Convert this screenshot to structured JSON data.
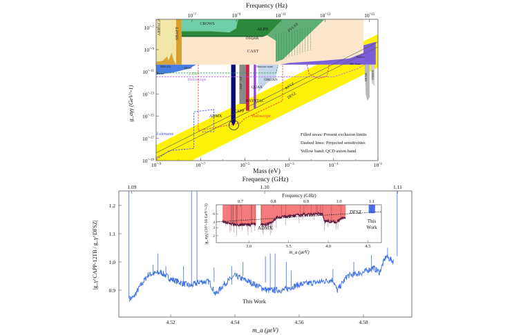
{
  "chart_data": [
    {
      "type": "area",
      "title": "Axion-photon coupling exclusion plot",
      "xlabel": "Mass (eV)",
      "ylabel": "g_aγγ (GeV^-1)",
      "top_xlabel": "Frequency (Hz)",
      "xscale": "log",
      "yscale": "log",
      "xlim_log10": [
        -9,
        1
      ],
      "ylim_log10": [
        -19,
        -6.25
      ],
      "x_ticks": [
        "10^-9",
        "10^-7",
        "10^-5",
        "10^-3",
        "10^-1",
        "10^1"
      ],
      "x_ticks_log10": [
        -9,
        -7,
        -5,
        -3,
        -1,
        1
      ],
      "y_ticks": [
        "10^-19",
        "10^-17",
        "10^-15",
        "10^-13",
        "10^-11",
        "10^-9",
        "10^-7"
      ],
      "y_ticks_log10": [
        -19,
        -17,
        -15,
        -13,
        -11,
        -9,
        -7
      ],
      "top_ticks": [
        "10^7",
        "10^9",
        "10^11",
        "10^13",
        "10^15"
      ],
      "top_ticks_log10_hz": [
        7,
        9,
        11,
        13,
        15
      ],
      "regions": [
        {
          "name": "CAST",
          "color": "#fbe6cc",
          "poly": [
            [
              -7.85,
              -6.25
            ],
            [
              0.35,
              -6.25
            ],
            [
              0.35,
              -10.35
            ],
            [
              -7.85,
              -10.35
            ]
          ]
        },
        {
          "name": "ABRACADABRA",
          "color": "#f1e7a8",
          "poly": [
            [
              -9,
              -6.25
            ],
            [
              -8.1,
              -6.25
            ],
            [
              -8.1,
              -10.35
            ],
            [
              -9,
              -10.35
            ]
          ]
        },
        {
          "name": "ABRACADABRA-limit",
          "color": "#d9a536",
          "poly": [
            [
              -9,
              -10.35
            ],
            [
              -9,
              -10.1
            ],
            [
              -8.7,
              -10.0
            ],
            [
              -8.5,
              -9.6
            ],
            [
              -8.45,
              -10.0
            ],
            [
              -8.3,
              -9.3
            ],
            [
              -8.2,
              -10.0
            ],
            [
              -8.1,
              -10.35
            ]
          ]
        },
        {
          "name": "SHAFT",
          "color": "#d9a02c",
          "poly": [
            [
              -8.1,
              -6.25
            ],
            [
              -7.85,
              -6.25
            ],
            [
              -7.85,
              -10.35
            ],
            [
              -8.1,
              -10.35
            ]
          ]
        },
        {
          "name": "CROWS",
          "color": "#6fcfa9",
          "poly": [
            [
              -7.85,
              -6.25
            ],
            [
              -5.3,
              -6.25
            ],
            [
              -5.4,
              -7.1
            ],
            [
              -5.7,
              -7.45
            ],
            [
              -6.5,
              -7.35
            ],
            [
              -7.85,
              -7.35
            ]
          ]
        },
        {
          "name": "ALPS",
          "color": "#2a8a3a",
          "poly": [
            [
              -7.85,
              -7.35
            ],
            [
              -6.5,
              -7.35
            ],
            [
              -5.7,
              -7.45
            ],
            [
              -5.4,
              -7.1
            ],
            [
              -5.3,
              -6.25
            ],
            [
              -3.3,
              -6.25
            ],
            [
              -3.6,
              -6.9
            ],
            [
              -4.0,
              -7.7
            ],
            [
              -7.85,
              -7.7
            ]
          ]
        },
        {
          "name": "OSQAR",
          "color": "#1f6e30",
          "poly": [
            [
              -7.85,
              -7.7
            ],
            [
              -4.0,
              -7.7
            ],
            [
              -4.2,
              -7.85
            ],
            [
              -7.85,
              -7.85
            ]
          ]
        },
        {
          "name": "PVLAS",
          "color": "#5fae77",
          "poly": [
            [
              -3.3,
              -6.25
            ],
            [
              -1.4,
              -6.25
            ],
            [
              -3.3,
              -9.9
            ],
            [
              -3.6,
              -10.1
            ],
            [
              -3.6,
              -8.2
            ],
            [
              -4.0,
              -7.7
            ],
            [
              -3.6,
              -6.9
            ]
          ]
        },
        {
          "name": "Fermi-HESS-Mrk421",
          "color": "#4a7de0",
          "poly": [
            [
              -9,
              -10.35
            ],
            [
              -7.2,
              -10.35
            ],
            [
              -7.5,
              -10.7
            ],
            [
              -8.3,
              -11.1
            ],
            [
              -9,
              -11.25
            ]
          ]
        },
        {
          "name": "Stars",
          "color": "#7a5fd8",
          "poly": [
            [
              -3.4,
              -10.35
            ],
            [
              0.9,
              -10.35
            ],
            [
              0.9,
              -8.3
            ],
            [
              0.35,
              -8.6
            ],
            [
              0.35,
              -9.3
            ],
            [
              -0.3,
              -9.8
            ],
            [
              -1.5,
              -10.0
            ],
            [
              -3.0,
              -10.2
            ]
          ]
        },
        {
          "name": "MUSE",
          "color": "#b8b8b8",
          "poly": [
            [
              0.4,
              -10.35
            ],
            [
              0.62,
              -10.35
            ],
            [
              0.62,
              -13.3
            ],
            [
              0.52,
              -13.6
            ],
            [
              0.45,
              -13.0
            ]
          ]
        },
        {
          "name": "VIMOS",
          "color": "#cfcfcf",
          "poly": [
            [
              0.68,
              -10.35
            ],
            [
              0.85,
              -10.35
            ],
            [
              0.85,
              -12.3
            ],
            [
              0.72,
              -12.0
            ]
          ]
        },
        {
          "name": "Neutron stars",
          "color": "#c5d6ea",
          "poly": [
            [
              -4.4,
              -10.35
            ],
            [
              -3.5,
              -10.35
            ],
            [
              -3.6,
              -11.5
            ],
            [
              -4.0,
              -12.0
            ],
            [
              -4.4,
              -12.8
            ]
          ]
        },
        {
          "name": "RBF-UF",
          "color": "#8a8a8a",
          "poly": [
            [
              -5.25,
              -10.35
            ],
            [
              -4.95,
              -10.35
            ],
            [
              -4.95,
              -13.9
            ],
            [
              -5.25,
              -13.9
            ]
          ]
        },
        {
          "name": "CAPP",
          "color": "#d4204a",
          "poly": [
            [
              -4.95,
              -10.35
            ],
            [
              -4.8,
              -10.35
            ],
            [
              -4.8,
              -14.5
            ],
            [
              -4.95,
              -14.5
            ]
          ]
        },
        {
          "name": "HAYSTAC",
          "color": "#9a3fe0",
          "poly": [
            [
              -4.6,
              -10.35
            ],
            [
              -4.5,
              -10.35
            ],
            [
              -4.5,
              -14.3
            ],
            [
              -4.6,
              -14.3
            ]
          ]
        },
        {
          "name": "ADMX",
          "color": "#0a0a80",
          "poly": [
            [
              -5.62,
              -10.35
            ],
            [
              -5.42,
              -10.35
            ],
            [
              -5.42,
              -15.5
            ],
            [
              -5.52,
              -15.9
            ],
            [
              -5.62,
              -15.5
            ]
          ]
        }
      ],
      "qcd_band": {
        "name": "QCD axion band",
        "color": "#fff200",
        "poly": [
          [
            -9,
            -19
          ],
          [
            -9,
            -17.6
          ],
          [
            1,
            -7.6
          ],
          [
            1,
            -10.6
          ],
          [
            -7.4,
            -19
          ]
        ]
      },
      "model_lines": [
        {
          "name": "KSVZ",
          "offset": -9.3
        },
        {
          "name": "DFSZ",
          "offset": -9.75
        }
      ],
      "projections": [
        {
          "name": "LSW",
          "color": "#2e9e55",
          "pts": [
            [
              -9,
              -11.1
            ],
            [
              -3.6,
              -11.1
            ],
            [
              -3.5,
              -10.4
            ]
          ]
        },
        {
          "name": "Helioscope",
          "color": "#b56be6",
          "pts": [
            [
              -9,
              -11.45
            ],
            [
              -1.0,
              -11.45
            ],
            [
              -0.6,
              -11.2
            ],
            [
              0.1,
              -10.7
            ],
            [
              0.4,
              -10.35
            ]
          ]
        },
        {
          "name": "Haloscope",
          "color": "#f03c3c",
          "pts": [
            [
              -7.1,
              -10.35
            ],
            [
              -7.1,
              -16.3
            ],
            [
              -5.2,
              -15.6
            ],
            [
              -5.0,
              -15.2
            ],
            [
              -3.3,
              -13.6
            ],
            [
              -3.3,
              -10.35
            ]
          ]
        },
        {
          "name": "Haloscope-high",
          "color": "#f03c3c",
          "pts": [
            [
              -2.2,
              -10.35
            ],
            [
              -2.1,
              -11.2
            ],
            [
              -1.7,
              -11.6
            ],
            [
              -1.3,
              -11.4
            ],
            [
              -1.2,
              -10.35
            ]
          ]
        },
        {
          "name": "Lumped element",
          "color": "#4a55e8",
          "pts": [
            [
              -9,
              -18.9
            ],
            [
              -8.4,
              -18.1
            ],
            [
              -7.3,
              -17.9
            ],
            [
              -7.3,
              -14.6
            ],
            [
              -6.4,
              -14.4
            ],
            [
              -6.4,
              -16.4
            ],
            [
              -6.9,
              -16.4
            ],
            [
              -6.9,
              -16.5
            ]
          ]
        }
      ],
      "highlight_circle": {
        "center_log10": [
          -5.5,
          -15.8
        ]
      },
      "labels": {
        "abracadabra": "ABRACA-DABRA",
        "shaft": "SHAFT",
        "crows": "CROWS",
        "alps": "ALPS",
        "osqar": "OSQAR",
        "pvlas": "PVLAS",
        "cast": "CAST",
        "solar": "Solar-ν",
        "hb_stars": "HB Stars",
        "muse": "MUSE",
        "vimos": "VIMOS",
        "mrk421": "Mrk 421",
        "hess": "HESS",
        "fermi": "Fermi",
        "lsw": "LSW",
        "helioscope": "Helioscope",
        "neutron_stars": "Neutron stars",
        "rbf_uf": "RBF · UF",
        "quax": "QUAX",
        "organ": "ORGAN",
        "haystac": "HAYSTAC",
        "admx": "ADMX",
        "capp": "CAPP",
        "haloscope": "Haloscope",
        "lumped": "Lumped element",
        "ksvz": "KSVZ",
        "dfsz": "DFSZ"
      },
      "legend_notes": [
        "Filled areas: Present exclusion limits",
        "Dashed lines: Projected sensitivities",
        "Yellow band: QCD axion band"
      ]
    },
    {
      "type": "line",
      "xlabel": "m_a (μeV)",
      "ylabel": "|g_γ^CAPP-12TB / g_γ^DFSZ|",
      "top_xlabel": "Frequency (GHz)",
      "xlim": [
        4.504,
        4.595
      ],
      "ylim": [
        0.805,
        1.25
      ],
      "x_ticks": [
        "4.52",
        "4.54",
        "4.56",
        "4.58"
      ],
      "x_tick_values": [
        4.52,
        4.54,
        4.56,
        4.58
      ],
      "y_ticks": [
        "0.9",
        "1.0",
        "1.1",
        "1.2"
      ],
      "y_tick_values": [
        0.9,
        1.0,
        1.1,
        1.2
      ],
      "top_ticks": [
        "1.09",
        "1.10",
        "1.11"
      ],
      "top_tick_values_ghz": [
        1.09,
        1.1,
        1.11
      ],
      "series_color": "#3b6fe8",
      "series_label": "This Work",
      "points": [
        [
          4.5072,
          0.87
        ],
        [
          4.5085,
          0.875
        ],
        [
          4.51,
          0.905
        ],
        [
          4.513,
          0.955
        ],
        [
          4.517,
          0.963
        ],
        [
          4.52,
          0.94
        ],
        [
          4.523,
          0.927
        ],
        [
          4.5262,
          0.915
        ],
        [
          4.529,
          0.93
        ],
        [
          4.532,
          0.93
        ],
        [
          4.534,
          0.885
        ],
        [
          4.5365,
          0.92
        ],
        [
          4.54,
          0.951
        ],
        [
          4.545,
          0.927
        ],
        [
          4.55,
          0.9
        ],
        [
          4.555,
          0.9
        ],
        [
          4.56,
          0.92
        ],
        [
          4.565,
          0.927
        ],
        [
          4.5705,
          0.937
        ],
        [
          4.5718,
          0.898
        ],
        [
          4.575,
          0.951
        ],
        [
          4.58,
          0.963
        ],
        [
          4.583,
          0.98
        ],
        [
          4.585,
          0.963
        ],
        [
          4.587,
          1.02
        ],
        [
          4.5895,
          1.0
        ]
      ],
      "spikes": [
        [
          4.507,
          1.25
        ],
        [
          4.5145,
          0.99
        ],
        [
          4.516,
          1.03
        ],
        [
          4.5185,
          0.985
        ],
        [
          4.524,
          0.985
        ],
        [
          4.5265,
          1.25
        ],
        [
          4.5282,
          1.25
        ],
        [
          4.5335,
          0.98
        ],
        [
          4.539,
          0.985
        ],
        [
          4.5425,
          1.0
        ],
        [
          4.5495,
          1.02
        ],
        [
          4.551,
          1.03
        ],
        [
          4.5525,
          1.03
        ],
        [
          4.556,
          1.0
        ],
        [
          4.5575,
          0.97
        ],
        [
          4.5705,
          0.975
        ],
        [
          4.577,
          1.0
        ],
        [
          4.5825,
          1.025
        ],
        [
          4.5875,
          1.05
        ],
        [
          4.5905,
          1.25
        ]
      ]
    },
    {
      "type": "area",
      "role": "inset",
      "xlabel": "m_a (μeV)",
      "ylabel": "|g_aγγ| (10^-16 GeV^-1)",
      "top_xlabel": "Frequency (GHz)",
      "xlim": [
        2.59,
        4.67
      ],
      "ylim": [
        1.41,
        9.5
      ],
      "yscale": "log",
      "x_ticks": [
        "3.0",
        "3.5",
        "4.0",
        "4.5"
      ],
      "x_tick_values": [
        3.0,
        3.5,
        4.0,
        4.5
      ],
      "y_ticks": [
        "2",
        "3",
        "4",
        "6"
      ],
      "y_tick_values": [
        2,
        3,
        4,
        6
      ],
      "top_ticks": [
        "0.7",
        "0.8",
        "0.9",
        "1.0",
        "1.1"
      ],
      "top_tick_values_ghz": [
        0.7,
        0.8,
        0.9,
        1.0,
        1.1
      ],
      "admx_color": "#f47c7c",
      "admx_blocks": [
        [
          2.67,
          3.09
        ],
        [
          3.15,
          4.22
        ]
      ],
      "admx_curve": [
        [
          2.67,
          4.2
        ],
        [
          2.75,
          3.7
        ],
        [
          2.85,
          3.5
        ],
        [
          3.0,
          3.5
        ],
        [
          3.09,
          3.6
        ],
        [
          3.15,
          3.5
        ],
        [
          3.25,
          3.6
        ],
        [
          3.3,
          4.1
        ],
        [
          3.35,
          5.0
        ],
        [
          3.5,
          5.3
        ],
        [
          3.7,
          5.8
        ],
        [
          3.93,
          6.0
        ],
        [
          3.95,
          4.2
        ],
        [
          4.1,
          4.0
        ],
        [
          4.2,
          5.0
        ]
      ],
      "this_work_block": [
        4.51,
        4.59
      ],
      "this_work_color": "#4a6ef0",
      "dfsz_line": [
        [
          2.59,
          4.0
        ],
        [
          4.67,
          6.7
        ]
      ],
      "labels": {
        "admx": "ADMX",
        "dfsz": "DFSZ",
        "this_work_1": "This",
        "this_work_2": "Work"
      }
    }
  ]
}
